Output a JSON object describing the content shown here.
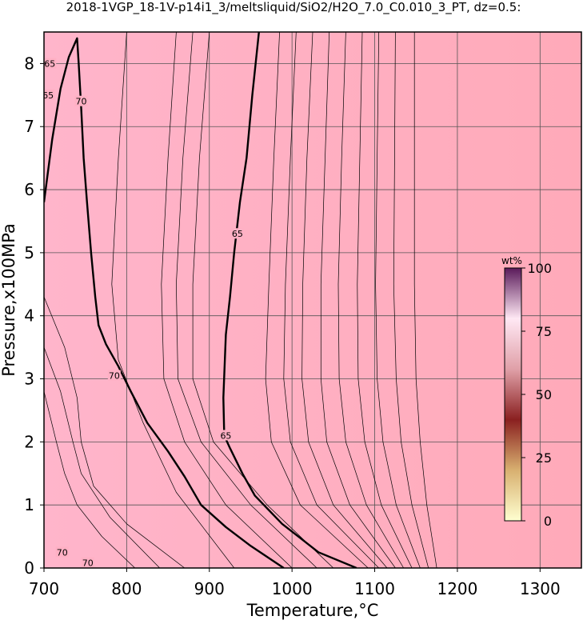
{
  "chart_data": {
    "type": "contour",
    "title": "2018-1VGP_18-1V-p14i1_3/meltsliquid/SiO2/H2O_7.0_C0.010_3_PT, dz=0.5:",
    "x_label": "Temperature,°C",
    "y_label": "Pressure,x100MPa",
    "xlim": [
      700,
      1350
    ],
    "ylim": [
      0,
      8.5
    ],
    "xticks": [
      700,
      800,
      900,
      1000,
      1100,
      1200,
      1300
    ],
    "yticks": [
      0,
      1,
      2,
      3,
      4,
      5,
      6,
      7,
      8
    ],
    "grid": true,
    "background_colors": [
      "#ffb5cb",
      "#ffaab9"
    ],
    "contours": [
      {
        "x": [
          700,
          710,
          720,
          730,
          740,
          742,
          745,
          748,
          752,
          757,
          762,
          766,
          775,
          790,
          805,
          825,
          850,
          870,
          890,
          920,
          950,
          990
        ],
        "y": [
          5.8,
          6.8,
          7.6,
          8.1,
          8.4,
          8.0,
          7.3,
          6.5,
          5.8,
          5.0,
          4.3,
          3.85,
          3.55,
          3.2,
          2.8,
          2.3,
          1.85,
          1.45,
          1.0,
          0.65,
          0.35,
          0.0
        ],
        "color": "#000000",
        "width": 2.4
      },
      {
        "x": [
          960,
          952,
          945,
          937,
          930,
          925,
          920,
          917,
          918,
          925,
          940,
          955,
          988,
          1032,
          1078
        ],
        "y": [
          8.5,
          7.5,
          6.5,
          5.8,
          5.0,
          4.3,
          3.7,
          2.7,
          2.1,
          1.9,
          1.5,
          1.15,
          0.7,
          0.25,
          0.0
        ],
        "color": "#000000",
        "width": 2.4
      }
    ],
    "thin_contours": [
      {
        "x": [
          860,
          850,
          842,
          845,
          870,
          920,
          1000
        ],
        "y": [
          8.5,
          6.5,
          4.5,
          3.0,
          2.0,
          1.0,
          0.0
        ]
      },
      {
        "x": [
          880,
          868,
          860,
          862,
          890,
          950,
          1030
        ],
        "y": [
          8.5,
          6.5,
          4.5,
          3.0,
          2.0,
          1.0,
          0.0
        ]
      },
      {
        "x": [
          900,
          888,
          880,
          880,
          905,
          970,
          1050
        ],
        "y": [
          8.5,
          6.5,
          4.5,
          3.0,
          2.0,
          1.0,
          0.0
        ]
      },
      {
        "x": [
          985,
          978,
          972,
          968,
          975,
          1010,
          1092
        ],
        "y": [
          8.5,
          6.5,
          4.5,
          3.0,
          2.0,
          1.0,
          0.0
        ]
      },
      {
        "x": [
          1005,
          998,
          992,
          990,
          998,
          1030,
          1105
        ],
        "y": [
          8.5,
          6.5,
          4.5,
          3.0,
          2.0,
          1.0,
          0.0
        ]
      },
      {
        "x": [
          1025,
          1018,
          1013,
          1012,
          1020,
          1050,
          1115
        ],
        "y": [
          8.5,
          6.5,
          4.5,
          3.0,
          2.0,
          1.0,
          0.0
        ]
      },
      {
        "x": [
          1045,
          1040,
          1035,
          1035,
          1042,
          1070,
          1125
        ],
        "y": [
          8.5,
          6.5,
          4.5,
          3.0,
          2.0,
          1.0,
          0.0
        ]
      },
      {
        "x": [
          1065,
          1060,
          1056,
          1057,
          1065,
          1090,
          1135
        ],
        "y": [
          8.5,
          6.5,
          4.5,
          3.0,
          2.0,
          1.0,
          0.0
        ]
      },
      {
        "x": [
          1085,
          1082,
          1079,
          1080,
          1088,
          1108,
          1145
        ],
        "y": [
          8.5,
          6.5,
          4.5,
          3.0,
          2.0,
          1.0,
          0.0
        ]
      },
      {
        "x": [
          1105,
          1103,
          1101,
          1103,
          1110,
          1126,
          1155
        ],
        "y": [
          8.5,
          6.5,
          4.5,
          3.0,
          2.0,
          1.0,
          0.0
        ]
      },
      {
        "x": [
          1125,
          1124,
          1123,
          1126,
          1132,
          1145,
          1165
        ],
        "y": [
          8.5,
          6.5,
          4.5,
          3.0,
          2.0,
          1.0,
          0.0
        ]
      },
      {
        "x": [
          1148,
          1148,
          1148,
          1150,
          1155,
          1163,
          1175
        ],
        "y": [
          8.5,
          6.5,
          4.5,
          3.0,
          2.0,
          1.0,
          0.0
        ]
      },
      {
        "x": [
          800,
          790,
          782,
          790,
          820,
          860,
          930
        ],
        "y": [
          8.5,
          6.5,
          4.5,
          3.3,
          2.3,
          1.2,
          0.0
        ]
      },
      {
        "x": [
          700,
          725,
          740,
          745,
          760,
          800,
          870
        ],
        "y": [
          4.3,
          3.5,
          2.7,
          2.0,
          1.3,
          0.7,
          0.0
        ]
      },
      {
        "x": [
          700,
          720,
          735,
          745,
          780,
          840
        ],
        "y": [
          3.5,
          2.8,
          2.0,
          1.5,
          0.8,
          0.0
        ]
      },
      {
        "x": [
          700,
          715,
          725,
          740,
          770,
          810
        ],
        "y": [
          2.8,
          2.0,
          1.5,
          1.0,
          0.5,
          0.0
        ]
      }
    ],
    "annotations": [
      {
        "text": "70",
        "x": 745,
        "y": 7.4
      },
      {
        "text": "70",
        "x": 785,
        "y": 3.05
      },
      {
        "text": "70",
        "x": 722,
        "y": 0.25
      },
      {
        "text": "70",
        "x": 753,
        "y": 0.08
      },
      {
        "text": "65",
        "x": 707,
        "y": 8.0
      },
      {
        "text": "65",
        "x": 705,
        "y": 7.5
      },
      {
        "text": "65",
        "x": 934,
        "y": 5.3
      },
      {
        "text": "65",
        "x": 920,
        "y": 2.1
      }
    ],
    "colorbar": {
      "label": "wt%",
      "lim": [
        0,
        100
      ],
      "ticks": [
        0,
        25,
        50,
        75,
        100
      ],
      "colors": [
        "#ffffd0",
        "#d8b070",
        "#8a2020",
        "#e0a0a8",
        "#ffe8f4",
        "#5a1a5a"
      ]
    }
  }
}
